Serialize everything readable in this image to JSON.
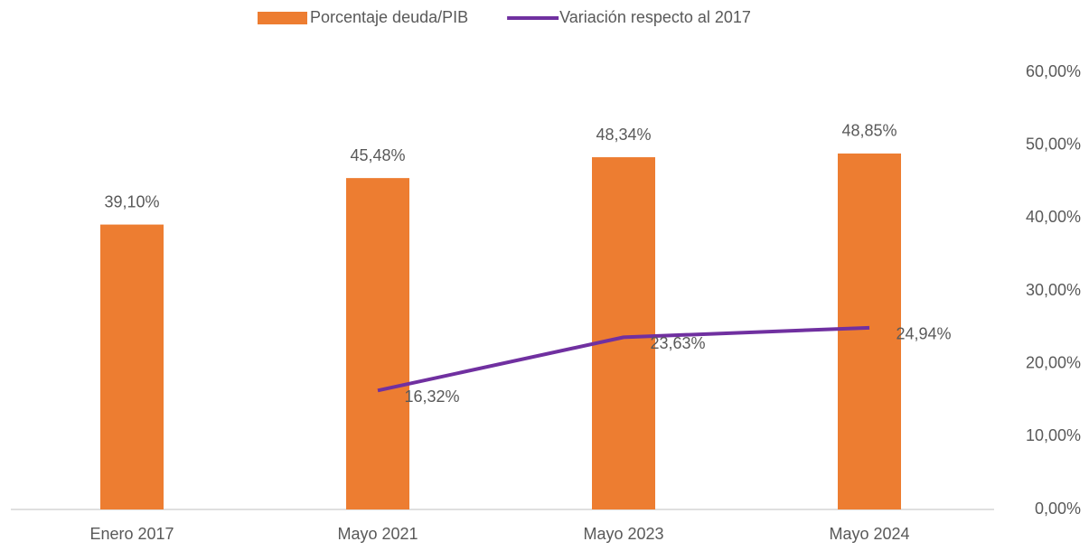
{
  "chart_data": {
    "type": "bar",
    "categories": [
      "Enero 2017",
      "Mayo 2021",
      "Mayo 2023",
      "Mayo 2024"
    ],
    "series": [
      {
        "name": "Porcentaje deuda/PIB",
        "type": "bar",
        "color": "#ed7d31",
        "values": [
          39.1,
          45.48,
          48.34,
          48.85
        ],
        "value_labels": [
          "39,10%",
          "45,48%",
          "48,34%",
          "48,85%"
        ]
      },
      {
        "name": "Variación respecto al 2017",
        "type": "line",
        "color": "#7030a0",
        "values": [
          null,
          16.32,
          23.63,
          24.94
        ],
        "value_labels": [
          null,
          "16,32%",
          "23,63%",
          "24,94%"
        ]
      }
    ],
    "ylim": [
      0,
      60
    ],
    "yticks": [
      {
        "value": 0,
        "label": "0,00%"
      },
      {
        "value": 10,
        "label": "10,00%"
      },
      {
        "value": 20,
        "label": "20,00%"
      },
      {
        "value": 30,
        "label": "30,00%"
      },
      {
        "value": 40,
        "label": "40,00%"
      },
      {
        "value": 50,
        "label": "50,00%"
      },
      {
        "value": 60,
        "label": "60,00%"
      }
    ],
    "axis_side": "right",
    "legend": "top",
    "grid": false
  }
}
